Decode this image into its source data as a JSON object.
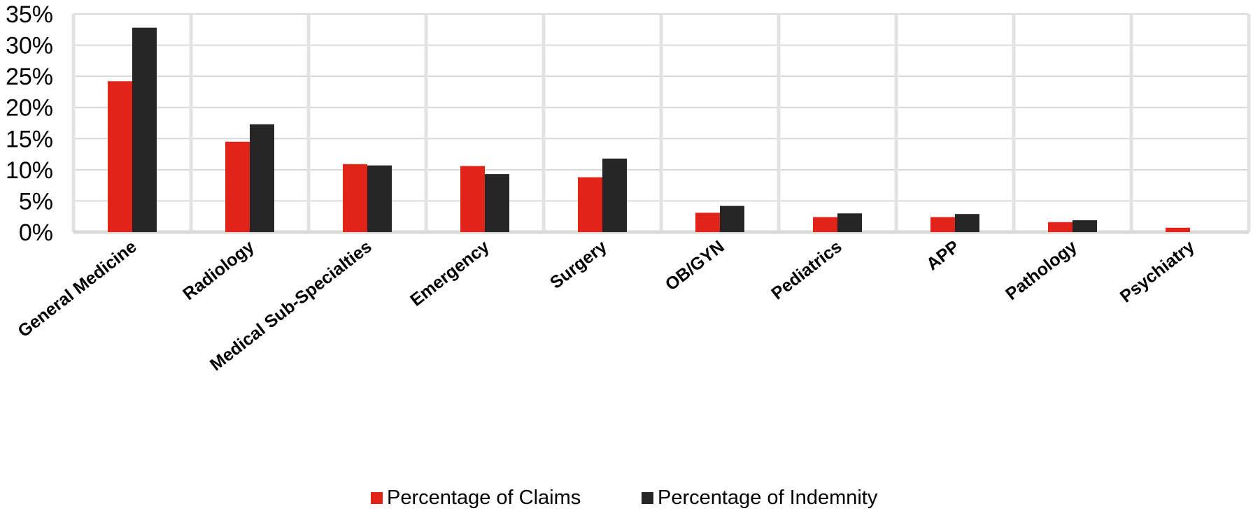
{
  "chart_data": {
    "type": "bar",
    "categories": [
      "General Medicine",
      "Radiology",
      "Medical Sub-Specialties",
      "Emergency",
      "Surgery",
      "OB/GYN",
      "Pediatrics",
      "APP",
      "Pathology",
      "Psychiatry"
    ],
    "series": [
      {
        "name": "Percentage of Claims",
        "color": "#e2231a",
        "values": [
          24.2,
          14.5,
          10.9,
          10.6,
          8.8,
          3.1,
          2.4,
          2.4,
          1.6,
          0.7
        ]
      },
      {
        "name": "Percentage of Indemnity",
        "color": "#262626",
        "values": [
          32.8,
          17.3,
          10.7,
          9.3,
          11.8,
          4.2,
          3.0,
          2.9,
          1.9,
          0.0
        ]
      }
    ],
    "ylim": [
      0,
      35
    ],
    "yticks": [
      0,
      5,
      10,
      15,
      20,
      25,
      30,
      35
    ],
    "ytick_suffix": "%",
    "grid": true,
    "legend_position": "bottom"
  }
}
